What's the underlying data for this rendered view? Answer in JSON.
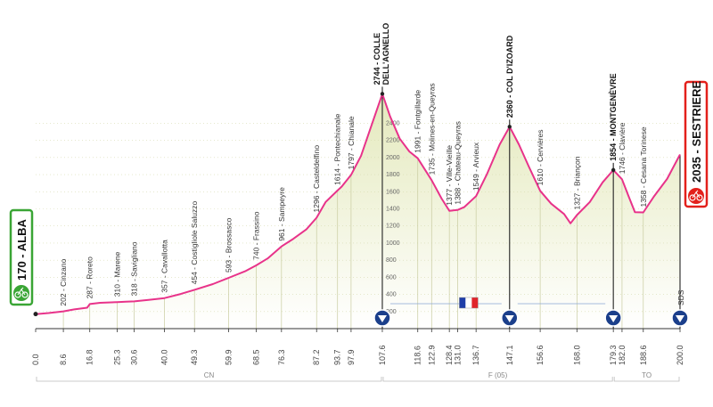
{
  "chart_data": {
    "type": "area",
    "title": "",
    "xlabel": "",
    "ylabel": "",
    "xlim": [
      0,
      200
    ],
    "ylim": [
      0,
      2800
    ],
    "y_ticks": [
      200,
      400,
      600,
      800,
      1000,
      1200,
      1400,
      1600,
      1800,
      2000,
      2200,
      2400
    ],
    "x_ticks": [
      "0.0",
      "8.6",
      "16.8",
      "25.3",
      "30.6",
      "40.0",
      "49.3",
      "59.9",
      "68.5",
      "76.3",
      "87.2",
      "93.7",
      "97.9",
      "107.6",
      "118.6",
      "122.9",
      "128.4",
      "131.0",
      "136.7",
      "147.1",
      "156.6",
      "168.0",
      "179.3",
      "182.0",
      "188.6",
      "200.0"
    ],
    "profile": [
      [
        0,
        170
      ],
      [
        4,
        182
      ],
      [
        8.6,
        202
      ],
      [
        12,
        225
      ],
      [
        16,
        245
      ],
      [
        16.8,
        287
      ],
      [
        20,
        302
      ],
      [
        25.3,
        310
      ],
      [
        28,
        314
      ],
      [
        30.6,
        318
      ],
      [
        35,
        335
      ],
      [
        40,
        357
      ],
      [
        45,
        405
      ],
      [
        49.3,
        454
      ],
      [
        55,
        520
      ],
      [
        59.9,
        593
      ],
      [
        65,
        670
      ],
      [
        68.5,
        740
      ],
      [
        72,
        820
      ],
      [
        76.3,
        961
      ],
      [
        80,
        1050
      ],
      [
        84,
        1160
      ],
      [
        87.2,
        1296
      ],
      [
        90,
        1480
      ],
      [
        93.7,
        1614
      ],
      [
        95,
        1660
      ],
      [
        97.9,
        1797
      ],
      [
        101,
        2020
      ],
      [
        104,
        2350
      ],
      [
        107.6,
        2744
      ],
      [
        110,
        2480
      ],
      [
        113,
        2220
      ],
      [
        116,
        2070
      ],
      [
        118.6,
        1991
      ],
      [
        122.9,
        1735
      ],
      [
        126,
        1520
      ],
      [
        128.4,
        1377
      ],
      [
        131,
        1388
      ],
      [
        133,
        1420
      ],
      [
        136.7,
        1549
      ],
      [
        140,
        1800
      ],
      [
        144,
        2150
      ],
      [
        147.1,
        2360
      ],
      [
        150,
        2150
      ],
      [
        153,
        1900
      ],
      [
        156.6,
        1610
      ],
      [
        160,
        1460
      ],
      [
        164,
        1340
      ],
      [
        166,
        1230
      ],
      [
        168,
        1327
      ],
      [
        172,
        1480
      ],
      [
        176,
        1710
      ],
      [
        179.3,
        1854
      ],
      [
        182,
        1746
      ],
      [
        184,
        1550
      ],
      [
        186,
        1360
      ],
      [
        188.6,
        1358
      ],
      [
        192,
        1550
      ],
      [
        196,
        1750
      ],
      [
        200,
        2035
      ]
    ],
    "towns": [
      {
        "km": 8.6,
        "alt": 202,
        "label": "202 - Cinzano"
      },
      {
        "km": 16.8,
        "alt": 287,
        "label": "287 - Roreto"
      },
      {
        "km": 25.3,
        "alt": 310,
        "label": "310 - Marene"
      },
      {
        "km": 30.6,
        "alt": 318,
        "label": "318 - Savigliano"
      },
      {
        "km": 40.0,
        "alt": 357,
        "label": "357 - Cavallotta"
      },
      {
        "km": 49.3,
        "alt": 454,
        "label": "454 - Costigliole Saluzzo"
      },
      {
        "km": 59.9,
        "alt": 593,
        "label": "593 - Brossasco"
      },
      {
        "km": 68.5,
        "alt": 740,
        "label": "740 - Frassino"
      },
      {
        "km": 76.3,
        "alt": 961,
        "label": "961 - Sampeyre"
      },
      {
        "km": 87.2,
        "alt": 1296,
        "label": "1296 - Casteldelfino"
      },
      {
        "km": 93.7,
        "alt": 1614,
        "label": "1614 - Pontechianale"
      },
      {
        "km": 97.9,
        "alt": 1797,
        "label": "1797 - Chianale"
      },
      {
        "km": 118.6,
        "alt": 1991,
        "label": "1991 - Fontgillarde"
      },
      {
        "km": 122.9,
        "alt": 1735,
        "label": "1735 - Molines-en-Queyras"
      },
      {
        "km": 128.4,
        "alt": 1377,
        "label": "1377 - Ville-Vieille"
      },
      {
        "km": 131.0,
        "alt": 1388,
        "label": "1388 - Chateau-Queyras"
      },
      {
        "km": 136.7,
        "alt": 1549,
        "label": "1549 - Arvieux"
      },
      {
        "km": 156.6,
        "alt": 1610,
        "label": "1610 - Cervières"
      },
      {
        "km": 168.0,
        "alt": 1327,
        "label": "1327 - Briançon"
      },
      {
        "km": 182.0,
        "alt": 1746,
        "label": "1746 - Clavière"
      },
      {
        "km": 188.6,
        "alt": 1358,
        "label": "1358 - Cesana Torinese"
      }
    ],
    "climbs": [
      {
        "km": 107.6,
        "alt": 2744,
        "line1": "2744 - COLLE",
        "line2": "DELL'AGNELLO"
      },
      {
        "km": 147.1,
        "alt": 2360,
        "line1": "2360 - COL D'IZOARD",
        "line2": ""
      },
      {
        "km": 179.3,
        "alt": 1854,
        "line1": "1854 - MONTGENÈVRE",
        "line2": ""
      }
    ],
    "markers": [
      107.6,
      147.1,
      179.3,
      200.0
    ],
    "regions": [
      {
        "label": "CN",
        "from": 0,
        "to": 107.6
      },
      {
        "label": "F (05)",
        "from": 107.6,
        "to": 179.3
      },
      {
        "label": "TO",
        "from": 179.3,
        "to": 200.0
      }
    ],
    "colors": {
      "profile_line": "#e8338a",
      "fill_top": "#e4e9bc",
      "fill_bottom": "#ffffff",
      "start_badge": "#3aa535",
      "finish_badge": "#e3201b"
    }
  },
  "start": {
    "label": "170 - ALBA"
  },
  "finish": {
    "label": "2035 - SESTRIERE"
  },
  "finish_marker_text": "SDS"
}
